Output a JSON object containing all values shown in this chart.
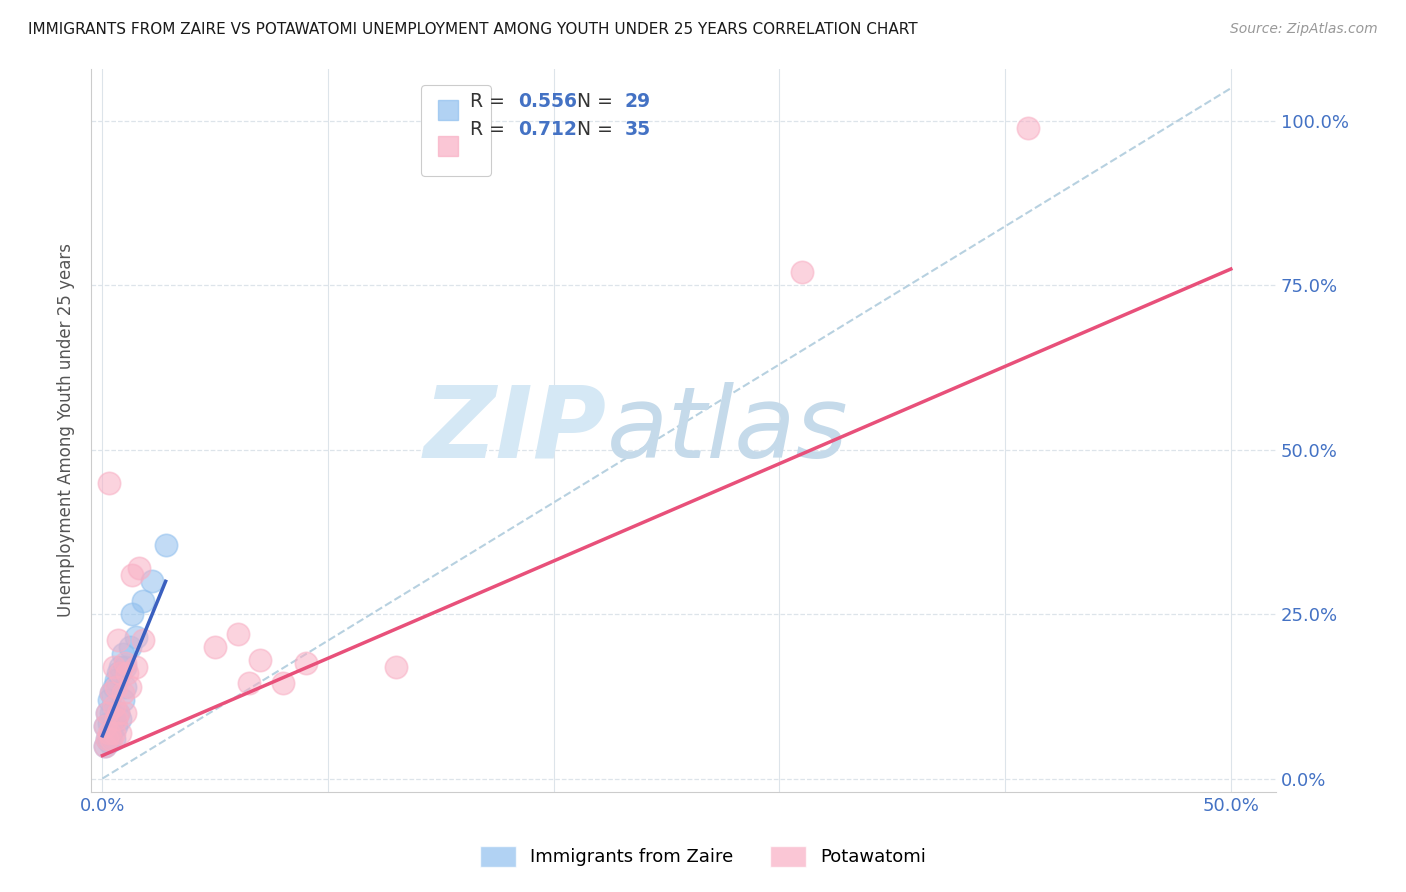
{
  "title": "IMMIGRANTS FROM ZAIRE VS POTAWATOMI UNEMPLOYMENT AMONG YOUTH UNDER 25 YEARS CORRELATION CHART",
  "source": "Source: ZipAtlas.com",
  "ylabel": "Unemployment Among Youth under 25 years",
  "xlim": [
    -0.005,
    0.52
  ],
  "ylim": [
    -0.02,
    1.08
  ],
  "yticks": [
    0.0,
    0.25,
    0.5,
    0.75,
    1.0
  ],
  "ytick_labels": [
    "0.0%",
    "25.0%",
    "50.0%",
    "75.0%",
    "100.0%"
  ],
  "xticks": [
    0.0,
    0.1,
    0.2,
    0.3,
    0.4,
    0.5
  ],
  "xtick_labels": [
    "0.0%",
    "",
    "",
    "",
    "",
    "50.0%"
  ],
  "blue_color": "#90bfee",
  "pink_color": "#f8afc4",
  "blue_line_color": "#3a5fbf",
  "pink_line_color": "#e8507a",
  "dashed_line_color": "#b0ccdd",
  "watermark_zip_color": "#d8e8f4",
  "watermark_atlas_color": "#c8daea",
  "legend_R_blue": "0.556",
  "legend_N_blue": "29",
  "legend_R_pink": "0.712",
  "legend_N_pink": "35",
  "blue_scatter_x": [
    0.001,
    0.001,
    0.002,
    0.002,
    0.003,
    0.003,
    0.003,
    0.004,
    0.004,
    0.004,
    0.005,
    0.005,
    0.005,
    0.006,
    0.006,
    0.007,
    0.007,
    0.008,
    0.008,
    0.009,
    0.009,
    0.01,
    0.01,
    0.012,
    0.013,
    0.015,
    0.018,
    0.022,
    0.028
  ],
  "blue_scatter_y": [
    0.05,
    0.08,
    0.06,
    0.1,
    0.055,
    0.085,
    0.12,
    0.07,
    0.1,
    0.13,
    0.06,
    0.09,
    0.14,
    0.08,
    0.15,
    0.1,
    0.16,
    0.09,
    0.17,
    0.12,
    0.19,
    0.14,
    0.17,
    0.2,
    0.25,
    0.215,
    0.27,
    0.3,
    0.355
  ],
  "pink_scatter_x": [
    0.001,
    0.001,
    0.002,
    0.002,
    0.003,
    0.003,
    0.004,
    0.004,
    0.005,
    0.005,
    0.005,
    0.006,
    0.006,
    0.007,
    0.007,
    0.008,
    0.008,
    0.009,
    0.01,
    0.01,
    0.011,
    0.012,
    0.013,
    0.015,
    0.016,
    0.018,
    0.05,
    0.06,
    0.065,
    0.07,
    0.08,
    0.09,
    0.13,
    0.31,
    0.41
  ],
  "pink_scatter_y": [
    0.05,
    0.08,
    0.06,
    0.1,
    0.07,
    0.45,
    0.06,
    0.13,
    0.07,
    0.11,
    0.17,
    0.09,
    0.14,
    0.1,
    0.21,
    0.07,
    0.16,
    0.13,
    0.1,
    0.175,
    0.16,
    0.14,
    0.31,
    0.17,
    0.32,
    0.21,
    0.2,
    0.22,
    0.145,
    0.18,
    0.145,
    0.175,
    0.17,
    0.77,
    0.99
  ],
  "blue_line_x": [
    0.0,
    0.028
  ],
  "blue_line_y": [
    0.065,
    0.3
  ],
  "pink_line_x": [
    0.0,
    0.5
  ],
  "pink_line_y": [
    0.035,
    0.775
  ],
  "dashed_line_x": [
    0.0,
    0.5
  ],
  "dashed_line_y": [
    0.0,
    1.05
  ],
  "background_color": "#ffffff",
  "grid_color": "#dde4ea",
  "tick_color": "#4472c4",
  "label_color": "#555555"
}
